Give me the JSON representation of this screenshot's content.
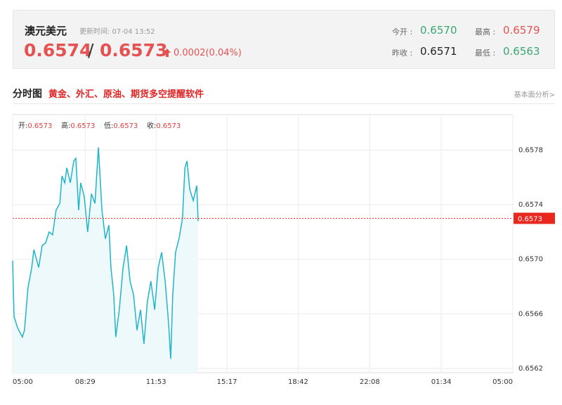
{
  "header": {
    "name": "澳元美元",
    "update": "更新时间: 07-04 13:52",
    "bid": "0.6574",
    "separator": "/",
    "ask": "0.6573",
    "change": "0.0002(0.04%)",
    "stats": [
      {
        "label": "今开 :",
        "value": "0.6570"
      },
      {
        "label": "最高 :",
        "value": "0.6579"
      },
      {
        "label": "昨收 :",
        "value": "0.6571"
      },
      {
        "label": "最低 :",
        "value": "0.6563"
      }
    ]
  },
  "subheader": {
    "title": "分时图",
    "promo": "黄金、外汇、原油、期货多空提醒软件",
    "link": "基本面分析>"
  },
  "chart_data": {
    "type": "line",
    "info": [
      {
        "label": "开:",
        "value": "0.6573"
      },
      {
        "label": "高:",
        "value": "0.6573"
      },
      {
        "label": "低:",
        "value": "0.6573"
      },
      {
        "label": "收:",
        "value": "0.6573"
      }
    ],
    "xlim": [
      0,
      1440
    ],
    "xticks": [
      {
        "value": 0,
        "label": "05:00"
      },
      {
        "value": 209,
        "label": "08:29"
      },
      {
        "value": 413,
        "label": "11:53"
      },
      {
        "value": 617,
        "label": "15:17"
      },
      {
        "value": 822,
        "label": "18:42"
      },
      {
        "value": 1028,
        "label": "22:08"
      },
      {
        "value": 1234,
        "label": "01:34"
      },
      {
        "value": 1440,
        "label": "05:00"
      }
    ],
    "ylim": [
      0.6562,
      0.65806
    ],
    "yticks": [
      0.6578,
      0.6574,
      {
        "value": 0.657,
        "label": "0.6570"
      },
      0.6566,
      0.6562
    ],
    "ref_line": 0.6573,
    "color": "#1fb5c9",
    "fill": "#eef9fc",
    "grid": true,
    "x": [
      0,
      4,
      14,
      28,
      34,
      44,
      55,
      61,
      75,
      85,
      95,
      105,
      115,
      125,
      136,
      142,
      150,
      156,
      166,
      176,
      182,
      190,
      196,
      206,
      216,
      227,
      237,
      247,
      257,
      267,
      277,
      283,
      291,
      297,
      307,
      318,
      328,
      338,
      348,
      358,
      368,
      378,
      388,
      398,
      409,
      419,
      429,
      439,
      449,
      455,
      461,
      469,
      479,
      489,
      496,
      502,
      510,
      520,
      530,
      534
    ],
    "values": [
      0.65699,
      0.65658,
      0.6565,
      0.65643,
      0.65648,
      0.65679,
      0.65694,
      0.65707,
      0.65694,
      0.6571,
      0.65712,
      0.6572,
      0.65718,
      0.65736,
      0.65741,
      0.65761,
      0.65756,
      0.65767,
      0.65756,
      0.65772,
      0.65774,
      0.65736,
      0.65756,
      0.65746,
      0.6572,
      0.65748,
      0.65741,
      0.65782,
      0.65736,
      0.65715,
      0.65725,
      0.65694,
      0.65674,
      0.65643,
      0.65663,
      0.65694,
      0.6571,
      0.65684,
      0.65674,
      0.65648,
      0.65663,
      0.65638,
      0.65669,
      0.65684,
      0.65663,
      0.65694,
      0.65705,
      0.65684,
      0.65653,
      0.65627,
      0.65674,
      0.65705,
      0.65715,
      0.6573,
      0.65767,
      0.65772,
      0.65751,
      0.65743,
      0.65754,
      0.65728
    ]
  }
}
